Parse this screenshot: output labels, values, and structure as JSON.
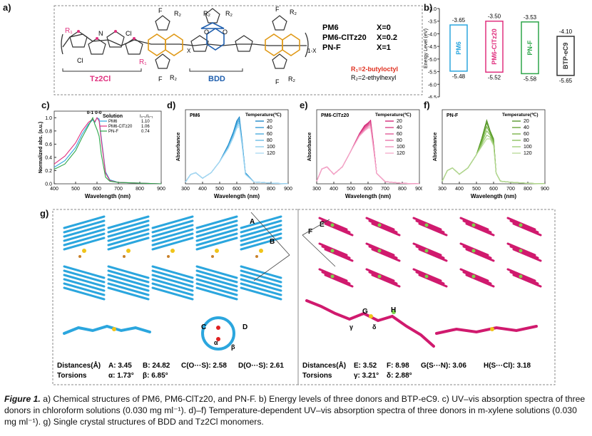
{
  "panel_a": {
    "label": "a)",
    "r1": "R₁",
    "r2": "R₂",
    "cl": "Cl",
    "n": "N",
    "s": "S",
    "o": "O",
    "f": "F",
    "x_sub": "X",
    "one_minus_x": "1-X",
    "tz2cl": "Tz2Cl",
    "bdd": "BDD",
    "polymers": [
      {
        "name": "PM6",
        "x": "X=0"
      },
      {
        "name": "PM6-ClTz20",
        "x": "X=0.2"
      },
      {
        "name": "PN-F",
        "x": "X=1"
      }
    ],
    "r1_def": "R₁=2-butyloctyl",
    "r2_def": "R₂=2-ethylhexyl"
  },
  "panel_b": {
    "label": "b)",
    "ylabel": "Energy Level (eV)",
    "ticks": [
      "-3.0",
      "-3.5",
      "-4.0",
      "-4.5",
      "-5.0",
      "-5.5",
      "-6.0",
      "-6.5"
    ],
    "materials": [
      {
        "name": "PM6",
        "lumo": "-3.65",
        "homo": "-5.48",
        "color": "#2ba6de"
      },
      {
        "name": "PM6-ClTz20",
        "lumo": "-3.50",
        "homo": "-5.52",
        "color": "#e0307f"
      },
      {
        "name": "PN-F",
        "lumo": "-3.53",
        "homo": "-5.58",
        "color": "#2ea64a"
      },
      {
        "name": "BTP-eC9",
        "lumo": "-4.10",
        "homo": "-5.65",
        "color": "#333333"
      }
    ]
  },
  "panel_c": {
    "label": "c)",
    "ylabel": "Normalized abs. (a.u.)",
    "xlabel": "Wavelength (nm)",
    "legend_title": "Solution",
    "ratio_header": "I₀-₀/I₀-₁",
    "peak_00": "0-0",
    "peak_01": "0-1",
    "legend": [
      {
        "name": "PM6",
        "ratio": "1.10",
        "color": "#2ba6de"
      },
      {
        "name": "PM6-ClTz20",
        "ratio": "1.06",
        "color": "#e0307f"
      },
      {
        "name": "PN-F",
        "ratio": "0.74",
        "color": "#2ea64a"
      }
    ]
  },
  "panel_d": {
    "label": "d)",
    "title": "PM6",
    "legend_title": "Temperature(℃)",
    "ylabel": "Absorbance",
    "xlabel": "Wavelength (nm)"
  },
  "panel_e": {
    "label": "e)",
    "title": "PM6-ClTz20",
    "legend_title": "Temperature(℃)",
    "ylabel": "Absorbance",
    "xlabel": "Wavelength (nm)"
  },
  "panel_f": {
    "label": "f)",
    "title": "PN-F",
    "legend_title": "Temperature(℃)",
    "ylabel": "Absorbance",
    "xlabel": "Wavelength (nm)"
  },
  "temperatures": [
    "20",
    "40",
    "60",
    "80",
    "100",
    "120"
  ],
  "panel_g": {
    "label": "g)",
    "letters": [
      "A",
      "B",
      "C",
      "D",
      "E",
      "F",
      "G",
      "H",
      "α",
      "β",
      "γ",
      "δ"
    ],
    "left": {
      "distances_label": "Distances(Å)",
      "torsions_label": "Torsions",
      "distances": [
        "A: 3.45",
        "B: 24.82",
        "C(O···S): 2.58",
        "D(O···S): 2.61"
      ],
      "torsions": [
        "α: 1.73°",
        "β: 6.85°"
      ]
    },
    "right": {
      "distances_label": "Distances(Å)",
      "torsions_label": "Torsions",
      "distances": [
        "E: 3.52",
        "F: 8.98",
        "G(S···N): 3.06",
        "H(S···Cl): 3.18"
      ],
      "torsions": [
        "γ: 3.21°",
        "δ: 2.88°"
      ]
    }
  },
  "chart_data": [
    {
      "type": "bar",
      "panel": "b",
      "title": "",
      "ylabel": "Energy Level (eV)",
      "ylim": [
        -6.5,
        -3.0
      ],
      "categories": [
        "PM6",
        "PM6-ClTz20",
        "PN-F",
        "BTP-eC9"
      ],
      "series": [
        {
          "name": "LUMO",
          "values": [
            -3.65,
            -3.5,
            -3.53,
            -4.1
          ]
        },
        {
          "name": "HOMO",
          "values": [
            -5.48,
            -5.52,
            -5.58,
            -5.65
          ]
        }
      ]
    },
    {
      "type": "line",
      "panel": "c",
      "xlabel": "Wavelength (nm)",
      "ylabel": "Normalized abs. (a.u.)",
      "xlim": [
        400,
        900
      ],
      "ylim": [
        0,
        1.1
      ],
      "x": [
        400,
        450,
        500,
        530,
        560,
        580,
        590,
        600,
        610,
        620,
        640,
        660,
        700,
        800,
        900
      ],
      "series": [
        {
          "name": "PM6",
          "values": [
            0.25,
            0.35,
            0.55,
            0.75,
            0.9,
            0.97,
            0.93,
            1.0,
            0.98,
            0.7,
            0.18,
            0.06,
            0.02,
            0.01,
            0.0
          ]
        },
        {
          "name": "PM6-ClTz20",
          "values": [
            0.3,
            0.42,
            0.62,
            0.8,
            0.93,
            0.98,
            0.94,
            1.0,
            0.95,
            0.66,
            0.16,
            0.05,
            0.02,
            0.01,
            0.0
          ]
        },
        {
          "name": "PN-F",
          "values": [
            0.22,
            0.3,
            0.5,
            0.7,
            0.88,
            1.0,
            0.9,
            0.82,
            0.72,
            0.45,
            0.1,
            0.04,
            0.02,
            0.01,
            0.0
          ]
        }
      ]
    },
    {
      "type": "line",
      "panel": "d",
      "xlabel": "Wavelength (nm)",
      "ylabel": "Absorbance",
      "xlim": [
        300,
        900
      ],
      "x": [
        300,
        330,
        360,
        400,
        450,
        500,
        550,
        580,
        600,
        615,
        630,
        650,
        700,
        800,
        900
      ],
      "series": [
        {
          "name": "20",
          "values": [
            0.05,
            0.25,
            0.3,
            0.15,
            0.3,
            0.6,
            1.05,
            1.4,
            1.7,
            1.8,
            1.2,
            0.3,
            0.05,
            0.02,
            0.0
          ]
        },
        {
          "name": "40",
          "values": [
            0.05,
            0.25,
            0.3,
            0.15,
            0.3,
            0.6,
            1.03,
            1.37,
            1.66,
            1.75,
            1.17,
            0.29,
            0.05,
            0.02,
            0.0
          ]
        },
        {
          "name": "60",
          "values": [
            0.05,
            0.25,
            0.3,
            0.15,
            0.3,
            0.6,
            1.01,
            1.34,
            1.62,
            1.7,
            1.14,
            0.28,
            0.05,
            0.02,
            0.0
          ]
        },
        {
          "name": "80",
          "values": [
            0.05,
            0.25,
            0.3,
            0.15,
            0.3,
            0.6,
            0.99,
            1.31,
            1.58,
            1.65,
            1.11,
            0.27,
            0.05,
            0.02,
            0.0
          ]
        },
        {
          "name": "100",
          "values": [
            0.05,
            0.25,
            0.3,
            0.15,
            0.3,
            0.6,
            0.97,
            1.28,
            1.54,
            1.6,
            1.08,
            0.26,
            0.05,
            0.02,
            0.0
          ]
        },
        {
          "name": "120",
          "values": [
            0.05,
            0.25,
            0.3,
            0.15,
            0.3,
            0.6,
            0.95,
            1.25,
            1.5,
            1.55,
            1.05,
            0.25,
            0.05,
            0.02,
            0.0
          ]
        }
      ]
    },
    {
      "type": "line",
      "panel": "e",
      "xlabel": "Wavelength (nm)",
      "ylabel": "Absorbance",
      "xlim": [
        300,
        900
      ],
      "x": [
        300,
        330,
        360,
        400,
        450,
        500,
        550,
        580,
        600,
        615,
        630,
        650,
        700,
        800,
        900
      ],
      "series": [
        {
          "name": "20",
          "values": [
            0.05,
            0.28,
            0.32,
            0.18,
            0.32,
            0.62,
            0.95,
            1.1,
            1.15,
            1.2,
            0.8,
            0.2,
            0.04,
            0.01,
            0.0
          ]
        },
        {
          "name": "40",
          "values": [
            0.05,
            0.28,
            0.32,
            0.18,
            0.32,
            0.62,
            0.94,
            1.08,
            1.13,
            1.17,
            0.78,
            0.2,
            0.04,
            0.01,
            0.0
          ]
        },
        {
          "name": "60",
          "values": [
            0.05,
            0.28,
            0.32,
            0.18,
            0.32,
            0.62,
            0.93,
            1.06,
            1.11,
            1.14,
            0.76,
            0.2,
            0.04,
            0.01,
            0.0
          ]
        },
        {
          "name": "80",
          "values": [
            0.05,
            0.28,
            0.32,
            0.18,
            0.32,
            0.62,
            0.92,
            1.04,
            1.09,
            1.11,
            0.74,
            0.2,
            0.04,
            0.01,
            0.0
          ]
        },
        {
          "name": "100",
          "values": [
            0.05,
            0.28,
            0.32,
            0.18,
            0.32,
            0.62,
            0.91,
            1.02,
            1.07,
            1.08,
            0.72,
            0.2,
            0.04,
            0.01,
            0.0
          ]
        },
        {
          "name": "120",
          "values": [
            0.05,
            0.28,
            0.32,
            0.18,
            0.32,
            0.62,
            0.9,
            1.0,
            1.05,
            1.05,
            0.7,
            0.2,
            0.04,
            0.01,
            0.0
          ]
        }
      ]
    },
    {
      "type": "line",
      "panel": "f",
      "xlabel": "Wavelength (nm)",
      "ylabel": "Absorbance",
      "xlim": [
        300,
        900
      ],
      "x": [
        300,
        330,
        360,
        400,
        450,
        500,
        530,
        560,
        580,
        600,
        615,
        640,
        700,
        800,
        900
      ],
      "series": [
        {
          "name": "20",
          "values": [
            0.05,
            0.25,
            0.3,
            0.18,
            0.3,
            0.55,
            0.85,
            1.2,
            1.0,
            0.85,
            0.2,
            0.05,
            0.03,
            0.01,
            0.0
          ]
        },
        {
          "name": "40",
          "values": [
            0.05,
            0.25,
            0.3,
            0.18,
            0.3,
            0.55,
            0.82,
            1.15,
            0.98,
            0.83,
            0.2,
            0.05,
            0.03,
            0.01,
            0.0
          ]
        },
        {
          "name": "60",
          "values": [
            0.05,
            0.25,
            0.3,
            0.18,
            0.3,
            0.55,
            0.79,
            1.08,
            0.95,
            0.8,
            0.2,
            0.05,
            0.03,
            0.01,
            0.0
          ]
        },
        {
          "name": "80",
          "values": [
            0.05,
            0.25,
            0.3,
            0.18,
            0.3,
            0.55,
            0.76,
            1.0,
            0.92,
            0.78,
            0.2,
            0.05,
            0.03,
            0.01,
            0.0
          ]
        },
        {
          "name": "100",
          "values": [
            0.05,
            0.25,
            0.3,
            0.18,
            0.3,
            0.55,
            0.73,
            0.92,
            0.88,
            0.75,
            0.2,
            0.05,
            0.03,
            0.01,
            0.0
          ]
        },
        {
          "name": "120",
          "values": [
            0.05,
            0.25,
            0.3,
            0.18,
            0.3,
            0.55,
            0.7,
            0.85,
            0.85,
            0.72,
            0.2,
            0.05,
            0.03,
            0.01,
            0.0
          ]
        }
      ]
    }
  ],
  "caption": {
    "label": "Figure 1.",
    "text": "a) Chemical structures of PM6, PM6-ClTz20, and PN-F. b) Energy levels of three donors and BTP-eC9. c) UV–vis absorption spectra of three donors in chloroform solutions (0.030 mg ml⁻¹). d)–f) Temperature-dependent UV–vis absorption spectra of three donors in m-xylene solutions (0.030 mg ml⁻¹). g) Single crystal structures of BDD and Tz2Cl monomers."
  }
}
